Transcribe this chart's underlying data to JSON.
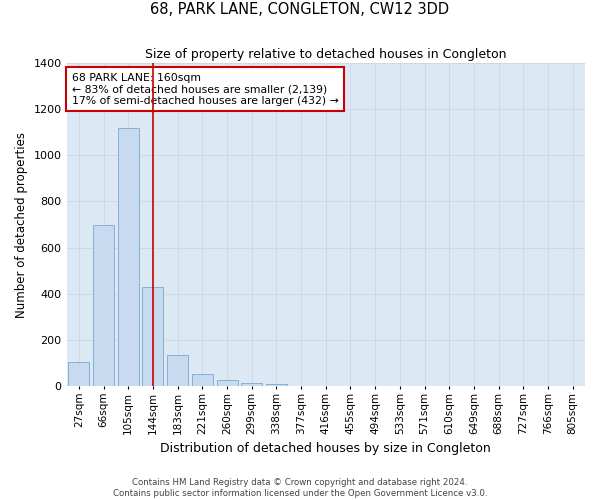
{
  "title": "68, PARK LANE, CONGLETON, CW12 3DD",
  "subtitle": "Size of property relative to detached houses in Congleton",
  "xlabel": "Distribution of detached houses by size in Congleton",
  "ylabel": "Number of detached properties",
  "categories": [
    "27sqm",
    "66sqm",
    "105sqm",
    "144sqm",
    "183sqm",
    "221sqm",
    "260sqm",
    "299sqm",
    "338sqm",
    "377sqm",
    "416sqm",
    "455sqm",
    "494sqm",
    "533sqm",
    "571sqm",
    "610sqm",
    "649sqm",
    "688sqm",
    "727sqm",
    "766sqm",
    "805sqm"
  ],
  "values": [
    105,
    700,
    1120,
    430,
    135,
    50,
    28,
    15,
    10,
    0,
    0,
    0,
    0,
    0,
    0,
    0,
    0,
    0,
    0,
    0,
    0
  ],
  "bar_color": "#c8daf0",
  "bar_edge_color": "#7aaad0",
  "grid_color": "#d0d8e8",
  "bg_color": "#dde8f5",
  "vline_x": 3.0,
  "vline_color": "#cc0000",
  "annotation_text": "68 PARK LANE: 160sqm\n← 83% of detached houses are smaller (2,139)\n17% of semi-detached houses are larger (432) →",
  "annotation_box_color": "#ffffff",
  "annotation_border_color": "#cc0000",
  "footer1": "Contains HM Land Registry data © Crown copyright and database right 2024.",
  "footer2": "Contains public sector information licensed under the Open Government Licence v3.0.",
  "ylim": [
    0,
    1400
  ],
  "yticks": [
    0,
    200,
    400,
    600,
    800,
    1000,
    1200,
    1400
  ],
  "title_fontsize": 10.5,
  "subtitle_fontsize": 9,
  "ylabel_fontsize": 8.5,
  "xlabel_fontsize": 9,
  "tick_fontsize": 7.5,
  "annotation_fontsize": 7.8
}
